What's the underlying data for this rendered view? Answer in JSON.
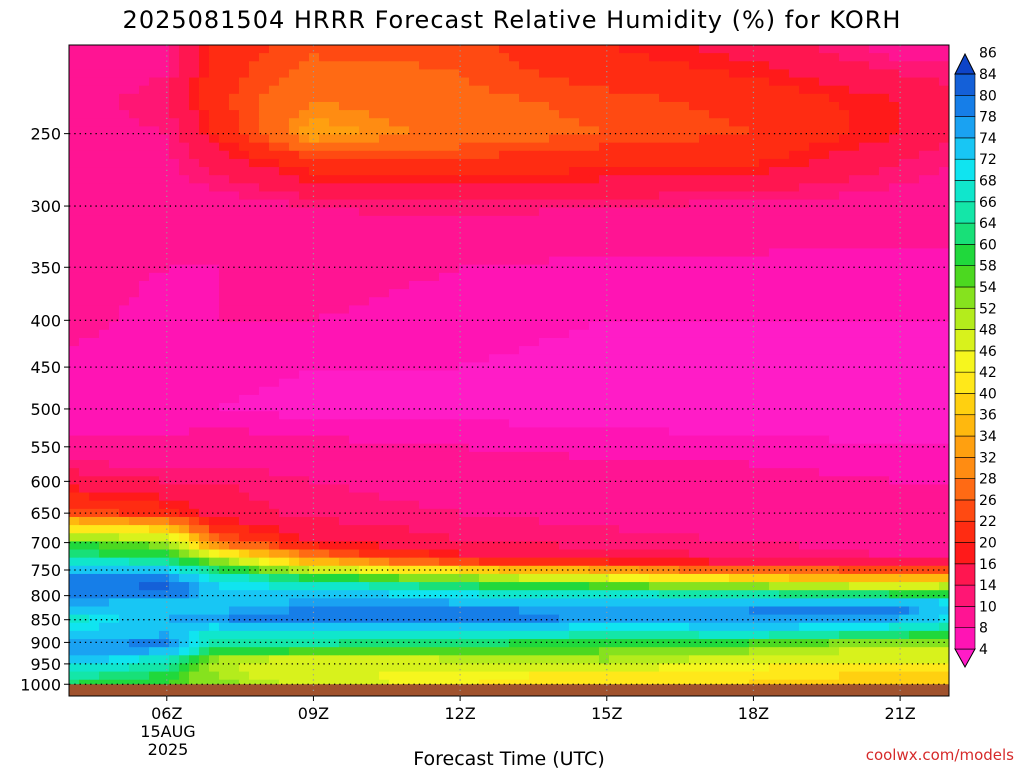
{
  "chart_data": {
    "type": "heatmap",
    "title": "2025081504 HRRR Forecast Relative Humidity (%) for KORH",
    "xlabel": "Forecast Time (UTC)",
    "ylabel": "",
    "x_ticks": [
      "06Z",
      "09Z",
      "12Z",
      "15Z",
      "18Z",
      "21Z"
    ],
    "x_date_lines": [
      "15AUG",
      "2025"
    ],
    "x_hours": [
      4,
      5,
      6,
      7,
      8,
      9,
      10,
      11,
      12,
      13,
      14,
      15,
      16,
      17,
      18,
      19,
      20,
      21,
      22
    ],
    "y_levels_hpa": [
      250,
      300,
      350,
      400,
      450,
      500,
      550,
      600,
      650,
      700,
      750,
      800,
      850,
      900,
      950,
      1000
    ],
    "y_scale": "log-pressure",
    "y_range_hpa": [
      200,
      1030
    ],
    "grid": true,
    "surface_fill_color": "#a0522d",
    "colorbar": {
      "placement": "right",
      "levels": [
        4,
        8,
        10,
        14,
        16,
        20,
        22,
        26,
        28,
        32,
        34,
        36,
        40,
        42,
        46,
        48,
        52,
        54,
        58,
        60,
        64,
        66,
        68,
        72,
        74,
        78,
        80,
        84,
        86
      ],
      "colors": [
        "#ff1cc7",
        "#ff14b4",
        "#ff1493",
        "#ff1674",
        "#ff1650",
        "#ff1a1a",
        "#ff2c12",
        "#ff4a12",
        "#ff6a14",
        "#ff8c12",
        "#ffa010",
        "#ffb80e",
        "#ffd010",
        "#ffe81a",
        "#f6f61e",
        "#d8f21c",
        "#b4ec1c",
        "#86e21e",
        "#4cd820",
        "#20d83c",
        "#18e078",
        "#14e6a8",
        "#10e6cc",
        "#10e4f0",
        "#18c6f4",
        "#1aa2f2",
        "#167ee8",
        "#1460d8",
        "#0e44c8"
      ]
    },
    "hours": [
      4,
      6,
      7,
      9,
      12,
      15,
      18,
      21,
      22
    ],
    "pressure": [
      200,
      230,
      250,
      270,
      300,
      350,
      400,
      450,
      500,
      550,
      600,
      650,
      700,
      730,
      760,
      790,
      820,
      850,
      880,
      910,
      940,
      970,
      990,
      1000
    ],
    "rh": [
      [
        10,
        12,
        24,
        27,
        27,
        22,
        18,
        12,
        12
      ],
      [
        12,
        16,
        25,
        32,
        29,
        27,
        25,
        20,
        18
      ],
      [
        12,
        14,
        22,
        36,
        30,
        28,
        26,
        20,
        16
      ],
      [
        12,
        13,
        17,
        24,
        25,
        23,
        22,
        16,
        14
      ],
      [
        13,
        12,
        12,
        14,
        15,
        14,
        13,
        12,
        12
      ],
      [
        11,
        10,
        10,
        11,
        10,
        9,
        9,
        9,
        9
      ],
      [
        11,
        9,
        10,
        10,
        9,
        8,
        8,
        8,
        8
      ],
      [
        9,
        8,
        9,
        8,
        8,
        7,
        7,
        6,
        6
      ],
      [
        8,
        8,
        8,
        7,
        7,
        7,
        6,
        6,
        5
      ],
      [
        11,
        11,
        12,
        11,
        10,
        9,
        9,
        8,
        8
      ],
      [
        18,
        16,
        16,
        14,
        13,
        12,
        11,
        10,
        10
      ],
      [
        28,
        24,
        18,
        15,
        14,
        13,
        12,
        12,
        12
      ],
      [
        60,
        56,
        30,
        20,
        16,
        15,
        14,
        13,
        13
      ],
      [
        68,
        64,
        54,
        34,
        22,
        18,
        16,
        14,
        14
      ],
      [
        82,
        80,
        70,
        60,
        52,
        44,
        36,
        34,
        34
      ],
      [
        84,
        86,
        76,
        74,
        70,
        66,
        62,
        58,
        60
      ],
      [
        78,
        74,
        76,
        80,
        80,
        78,
        80,
        82,
        76
      ],
      [
        70,
        78,
        80,
        82,
        84,
        78,
        80,
        78,
        72
      ],
      [
        74,
        78,
        68,
        72,
        72,
        68,
        70,
        66,
        62
      ],
      [
        80,
        82,
        66,
        64,
        62,
        60,
        56,
        52,
        54
      ],
      [
        76,
        70,
        54,
        50,
        52,
        54,
        50,
        48,
        48
      ],
      [
        68,
        64,
        52,
        48,
        46,
        46,
        44,
        42,
        42
      ],
      [
        66,
        62,
        56,
        50,
        48,
        44,
        42,
        40,
        40
      ],
      [
        64,
        60,
        55,
        50,
        46,
        44,
        42,
        40,
        40
      ]
    ]
  },
  "credit": "coolwx.com/models"
}
